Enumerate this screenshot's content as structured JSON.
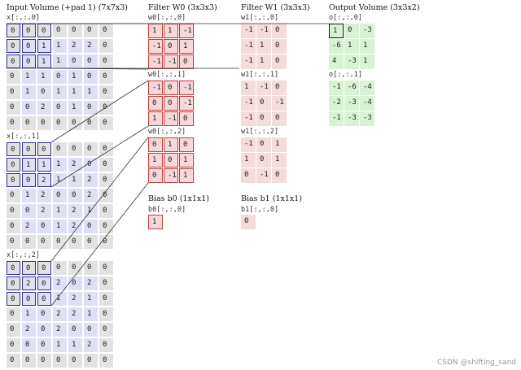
{
  "headers": {
    "input": "Input Volume (+pad 1) (7x7x3)",
    "filter_w0": "Filter W0 (3x3x3)",
    "filter_w1": "Filter W1 (3x3x3)",
    "output": "Output Volume (3x3x2)",
    "bias_b0": "Bias b0 (1x1x1)",
    "bias_b1": "Bias b1 (1x1x1)"
  },
  "input": [
    {
      "label": "x[:,:,0]",
      "rows": [
        [
          "0",
          "0",
          "0",
          "0",
          "0",
          "0",
          "0"
        ],
        [
          "0",
          "0",
          "1",
          "1",
          "2",
          "2",
          "0"
        ],
        [
          "0",
          "0",
          "1",
          "1",
          "0",
          "0",
          "0"
        ],
        [
          "0",
          "1",
          "1",
          "0",
          "1",
          "0",
          "0"
        ],
        [
          "0",
          "1",
          "0",
          "1",
          "1",
          "1",
          "0"
        ],
        [
          "0",
          "0",
          "2",
          "0",
          "1",
          "0",
          "0"
        ],
        [
          "0",
          "0",
          "0",
          "0",
          "0",
          "0",
          "0"
        ]
      ]
    },
    {
      "label": "x[:,:,1]",
      "rows": [
        [
          "0",
          "0",
          "0",
          "0",
          "0",
          "0",
          "0"
        ],
        [
          "0",
          "1",
          "1",
          "1",
          "2",
          "0",
          "0"
        ],
        [
          "0",
          "0",
          "2",
          "1",
          "1",
          "2",
          "0"
        ],
        [
          "0",
          "1",
          "2",
          "0",
          "0",
          "2",
          "0"
        ],
        [
          "0",
          "0",
          "2",
          "1",
          "2",
          "1",
          "0"
        ],
        [
          "0",
          "2",
          "0",
          "1",
          "2",
          "0",
          "0"
        ],
        [
          "0",
          "0",
          "0",
          "0",
          "0",
          "0",
          "0"
        ]
      ]
    },
    {
      "label": "x[:,:,2]",
      "rows": [
        [
          "0",
          "0",
          "0",
          "0",
          "0",
          "0",
          "0"
        ],
        [
          "0",
          "2",
          "0",
          "2",
          "0",
          "2",
          "0"
        ],
        [
          "0",
          "0",
          "0",
          "1",
          "2",
          "1",
          "0"
        ],
        [
          "0",
          "1",
          "0",
          "2",
          "2",
          "1",
          "0"
        ],
        [
          "0",
          "2",
          "0",
          "2",
          "0",
          "0",
          "0"
        ],
        [
          "0",
          "0",
          "0",
          "1",
          "1",
          "2",
          "0"
        ],
        [
          "0",
          "0",
          "0",
          "0",
          "0",
          "0",
          "0"
        ]
      ]
    }
  ],
  "w0": [
    {
      "label": "w0[:,:,0]",
      "rows": [
        [
          "1",
          "1",
          "-1"
        ],
        [
          "-1",
          "0",
          "1"
        ],
        [
          "-1",
          "-1",
          "0"
        ]
      ]
    },
    {
      "label": "w0[:,:,1]",
      "rows": [
        [
          "-1",
          "0",
          "-1"
        ],
        [
          "0",
          "0",
          "-1"
        ],
        [
          "1",
          "-1",
          "0"
        ]
      ]
    },
    {
      "label": "w0[:,:,2]",
      "rows": [
        [
          "0",
          "1",
          "0"
        ],
        [
          "1",
          "0",
          "1"
        ],
        [
          "0",
          "-1",
          "1"
        ]
      ]
    }
  ],
  "w1": [
    {
      "label": "w1[:,:,0]",
      "rows": [
        [
          "-1",
          "-1",
          "0"
        ],
        [
          "-1",
          "1",
          "0"
        ],
        [
          "-1",
          "1",
          "0"
        ]
      ]
    },
    {
      "label": "w1[:,:,1]",
      "rows": [
        [
          "1",
          "-1",
          "0"
        ],
        [
          "-1",
          "0",
          "-1"
        ],
        [
          "-1",
          "0",
          "0"
        ]
      ]
    },
    {
      "label": "w1[:,:,2]",
      "rows": [
        [
          "-1",
          "0",
          "1"
        ],
        [
          "1",
          "0",
          "1"
        ],
        [
          "0",
          "-1",
          "0"
        ]
      ]
    }
  ],
  "bias": {
    "b0_label": "b0[:,:,0]",
    "b0_value": "1",
    "b1_label": "b1[:,:,0]",
    "b1_value": "0"
  },
  "output": [
    {
      "label": "o[:,:,0]",
      "rows": [
        [
          "1",
          "0",
          "-3"
        ],
        [
          "-6",
          "1",
          "1"
        ],
        [
          "4",
          "-3",
          "1"
        ]
      ]
    },
    {
      "label": "o[:,:,1]",
      "rows": [
        [
          "-1",
          "-6",
          "-4"
        ],
        [
          "-2",
          "-3",
          "-4"
        ],
        [
          "-1",
          "-3",
          "-3"
        ]
      ]
    }
  ],
  "watermark": "CSDN @shifting_sand",
  "colors": {
    "input_cell": "#dfe0f5",
    "pad_cell": "#e2e2e2",
    "filter_w0": "#f7d7d7",
    "filter_w0_border": "#c23c3c",
    "filter_w1": "#f6dbdb",
    "output_cell": "#d8f3d3",
    "receptive_field": "#2e2e9e"
  }
}
